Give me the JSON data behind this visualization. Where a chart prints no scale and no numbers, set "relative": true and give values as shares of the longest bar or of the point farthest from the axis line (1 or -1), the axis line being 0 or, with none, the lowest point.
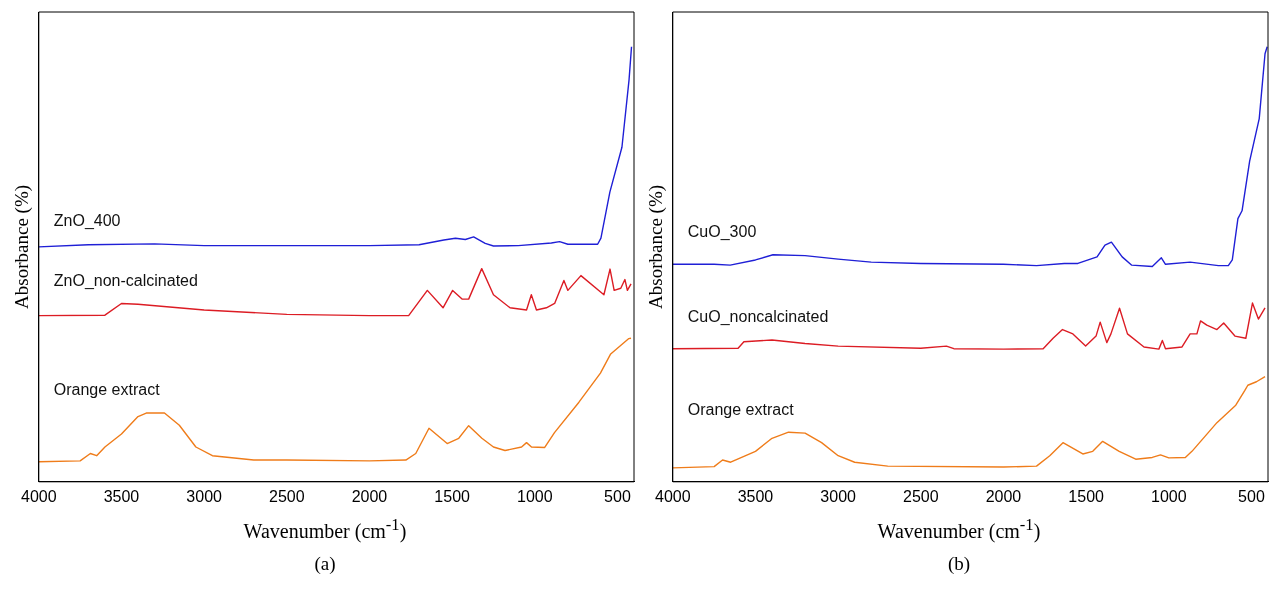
{
  "chart_data": [
    {
      "type": "line",
      "title": "(a)",
      "xlabel": "Wavenumber (cm$^{-1}$)",
      "ylabel": "Absorbance (%)",
      "relative": true,
      "xlim": [
        4000,
        400
      ],
      "xticks": [
        4000,
        3500,
        3000,
        2500,
        2000,
        1500,
        1000,
        500
      ],
      "legend": false,
      "marker": "none",
      "series": [
        {
          "name": "ZnO_400",
          "color": "#1f1fd6",
          "x": [
            4000,
            3700,
            3300,
            3000,
            2500,
            2000,
            1700,
            1550,
            1480,
            1420,
            1370,
            1300,
            1250,
            1100,
            900,
            850,
            800,
            620,
            600,
            546,
            473,
            430,
            415
          ],
          "values": [
            0.54,
            0.545,
            0.547,
            0.543,
            0.543,
            0.543,
            0.545,
            0.556,
            0.56,
            0.557,
            0.563,
            0.548,
            0.542,
            0.543,
            0.549,
            0.552,
            0.546,
            0.546,
            0.56,
            0.666,
            0.769,
            0.924,
            1.0
          ]
        },
        {
          "name": "ZnO_non-calcinated",
          "color": "#dc1c24",
          "x": [
            4000,
            3600,
            3500,
            3400,
            3000,
            2500,
            2000,
            1763,
            1650,
            1555,
            1497,
            1440,
            1400,
            1321,
            1250,
            1150,
            1050,
            1021,
            990,
            930,
            880,
            824,
            800,
            721,
            582,
            545,
            520,
            480,
            455,
            440,
            418
          ],
          "values": [
            0.382,
            0.383,
            0.41,
            0.408,
            0.395,
            0.385,
            0.382,
            0.382,
            0.44,
            0.4,
            0.44,
            0.42,
            0.42,
            0.49,
            0.43,
            0.4,
            0.395,
            0.43,
            0.395,
            0.4,
            0.41,
            0.463,
            0.44,
            0.474,
            0.43,
            0.489,
            0.44,
            0.445,
            0.465,
            0.44,
            0.455
          ]
        },
        {
          "name": "Orange extract",
          "color": "#ef7c1a",
          "x": [
            4000,
            3750,
            3688,
            3650,
            3600,
            3500,
            3400,
            3350,
            3240,
            3150,
            3050,
            2950,
            2700,
            2500,
            2000,
            1780,
            1720,
            1640,
            1530,
            1460,
            1400,
            1320,
            1250,
            1180,
            1080,
            1050,
            1020,
            940,
            881,
            733,
            603,
            541,
            433,
            418
          ],
          "values": [
            0.046,
            0.048,
            0.065,
            0.06,
            0.08,
            0.11,
            0.15,
            0.158,
            0.158,
            0.13,
            0.08,
            0.06,
            0.05,
            0.05,
            0.048,
            0.05,
            0.065,
            0.123,
            0.088,
            0.1,
            0.129,
            0.1,
            0.08,
            0.072,
            0.08,
            0.09,
            0.08,
            0.079,
            0.113,
            0.183,
            0.25,
            0.294,
            0.329,
            0.33
          ]
        }
      ]
    },
    {
      "type": "line",
      "title": "(b)",
      "xlabel": "Wavenumber (cm$^{-1}$)",
      "ylabel": "Absorbance (%)",
      "relative": true,
      "xlim": [
        4000,
        400
      ],
      "xticks": [
        4000,
        3500,
        3000,
        2500,
        2000,
        1500,
        1000,
        500
      ],
      "legend": false,
      "marker": "none",
      "series": [
        {
          "name": "CuO_300",
          "color": "#1f1fd6",
          "x": [
            4000,
            3750,
            3653,
            3500,
            3394,
            3200,
            3000,
            2800,
            2500,
            2000,
            1800,
            1632,
            1550,
            1434,
            1386,
            1347,
            1282,
            1224,
            1100,
            1045,
            1020,
            871,
            700,
            640,
            616,
            582,
            557,
            511,
            453,
            418,
            405
          ],
          "values": [
            0.5,
            0.5,
            0.498,
            0.51,
            0.522,
            0.52,
            0.512,
            0.505,
            0.502,
            0.5,
            0.497,
            0.502,
            0.502,
            0.517,
            0.544,
            0.551,
            0.517,
            0.498,
            0.495,
            0.515,
            0.5,
            0.505,
            0.497,
            0.497,
            0.51,
            0.605,
            0.623,
            0.737,
            0.835,
            0.984,
            1.0
          ]
        },
        {
          "name": "CuO_noncalcinated",
          "color": "#dc1c24",
          "x": [
            4000,
            3605,
            3570,
            3400,
            3200,
            3000,
            2500,
            2345,
            2300,
            2000,
            1760,
            1700,
            1643,
            1580,
            1503,
            1440,
            1415,
            1375,
            1350,
            1298,
            1250,
            1150,
            1060,
            1039,
            1020,
            920,
            871,
            830,
            808,
            770,
            709,
            668,
            600,
            534,
            494,
            458,
            418
          ],
          "values": [
            0.306,
            0.307,
            0.322,
            0.326,
            0.318,
            0.312,
            0.307,
            0.312,
            0.306,
            0.305,
            0.306,
            0.33,
            0.35,
            0.34,
            0.312,
            0.335,
            0.367,
            0.32,
            0.34,
            0.399,
            0.34,
            0.31,
            0.305,
            0.325,
            0.306,
            0.31,
            0.34,
            0.34,
            0.37,
            0.36,
            0.35,
            0.365,
            0.335,
            0.33,
            0.411,
            0.374,
            0.4
          ]
        },
        {
          "name": "Orange extract",
          "color": "#ef7c1a",
          "x": [
            4000,
            3750,
            3699,
            3650,
            3500,
            3400,
            3300,
            3200,
            3100,
            3000,
            2900,
            2700,
            2000,
            1800,
            1720,
            1640,
            1520,
            1460,
            1400,
            1300,
            1200,
            1100,
            1050,
            1000,
            900,
            860,
            709,
            595,
            540,
            522,
            470,
            418
          ],
          "values": [
            0.032,
            0.035,
            0.05,
            0.045,
            0.07,
            0.1,
            0.114,
            0.112,
            0.09,
            0.06,
            0.045,
            0.036,
            0.034,
            0.036,
            0.06,
            0.09,
            0.064,
            0.07,
            0.093,
            0.07,
            0.052,
            0.056,
            0.062,
            0.055,
            0.056,
            0.07,
            0.136,
            0.176,
            0.21,
            0.222,
            0.23,
            0.242
          ]
        }
      ]
    }
  ]
}
